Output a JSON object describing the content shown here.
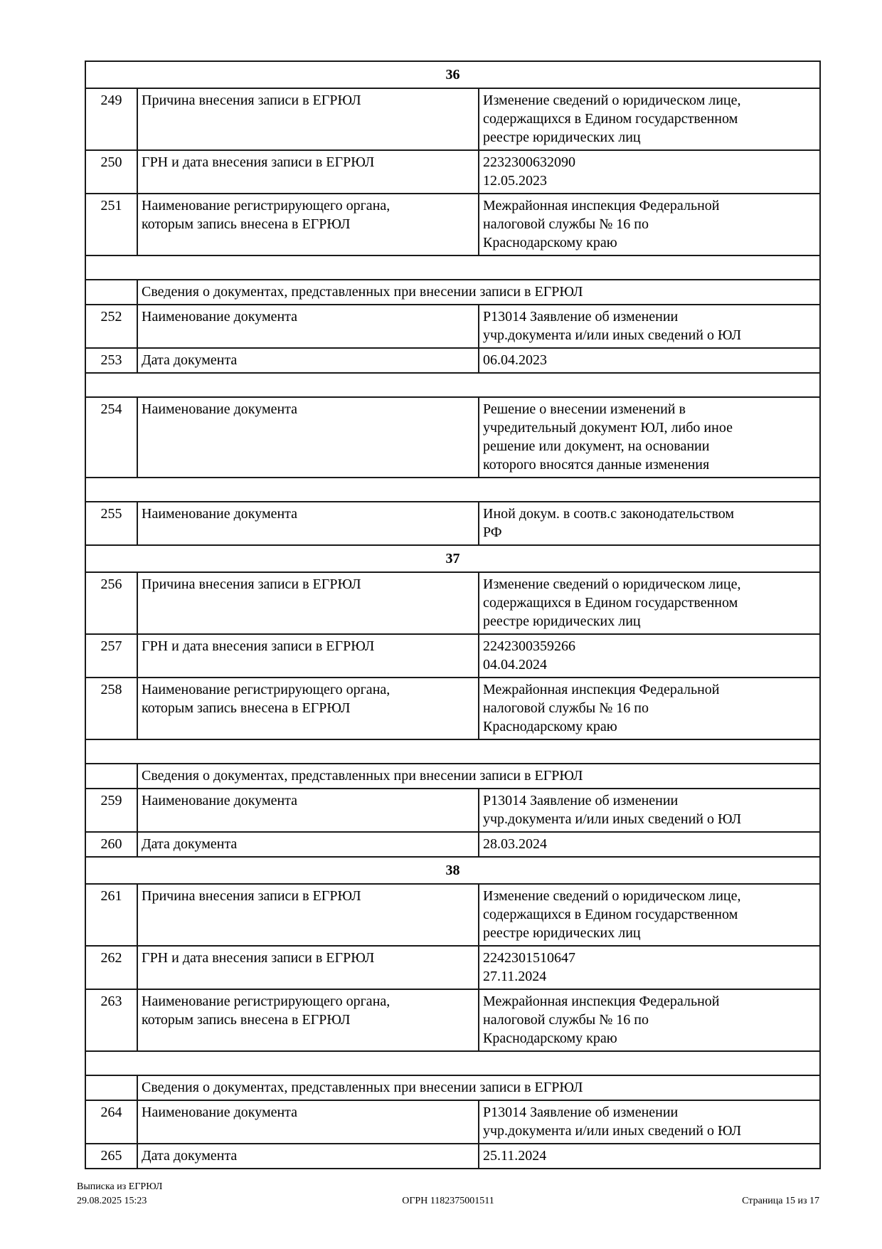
{
  "footer": {
    "title": "Выписка из ЕГРЮЛ",
    "datetime": "29.08.2025 15:23",
    "ogrn": "ОГРН 1182375001511",
    "page": "Страница 15 из 17"
  },
  "table": {
    "rows": [
      {
        "type": "section",
        "num": "36"
      },
      {
        "type": "data",
        "no": "249",
        "label": "Причина внесения записи в ЕГРЮЛ",
        "value": "Изменение сведений о юридическом лице,\nсодержащихся в Едином государственном\nреестре юридических лиц"
      },
      {
        "type": "data",
        "no": "250",
        "label": "ГРН и дата внесения записи в ЕГРЮЛ",
        "value": "2232300632090\n12.05.2023"
      },
      {
        "type": "data",
        "no": "251",
        "label": "Наименование регистрирующего органа,\nкоторым запись внесена в ЕГРЮЛ",
        "value": "Межрайонная инспекция Федеральной\nналоговой службы № 16 по\nКраснодарскому краю"
      },
      {
        "type": "spacer"
      },
      {
        "type": "docs_header",
        "text": "Сведения о документах, представленных при внесении записи в ЕГРЮЛ"
      },
      {
        "type": "data",
        "no": "252",
        "label": "Наименование документа",
        "value": "Р13014 Заявление об изменении\nучр.документа и/или иных сведений о ЮЛ"
      },
      {
        "type": "data",
        "no": "253",
        "label": "Дата документа",
        "value": "06.04.2023"
      },
      {
        "type": "spacer"
      },
      {
        "type": "data",
        "no": "254",
        "label": "Наименование документа",
        "value": "Решение о внесении изменений в\nучредительный документ ЮЛ, либо иное\nрешение или документ, на основании\nкоторого вносятся данные изменения"
      },
      {
        "type": "spacer"
      },
      {
        "type": "data",
        "no": "255",
        "label": "Наименование документа",
        "value": "Иной докум. в соотв.с законодательством\nРФ"
      },
      {
        "type": "section",
        "num": "37"
      },
      {
        "type": "data",
        "no": "256",
        "label": "Причина внесения записи в ЕГРЮЛ",
        "value": "Изменение сведений о юридическом лице,\nсодержащихся в Едином государственном\nреестре юридических лиц"
      },
      {
        "type": "data",
        "no": "257",
        "label": "ГРН и дата внесения записи в ЕГРЮЛ",
        "value": "2242300359266\n04.04.2024"
      },
      {
        "type": "data",
        "no": "258",
        "label": "Наименование регистрирующего органа,\nкоторым запись внесена в ЕГРЮЛ",
        "value": "Межрайонная инспекция Федеральной\nналоговой службы № 16 по\nКраснодарскому краю"
      },
      {
        "type": "spacer"
      },
      {
        "type": "docs_header",
        "text": "Сведения о документах, представленных при внесении записи в ЕГРЮЛ"
      },
      {
        "type": "data",
        "no": "259",
        "label": "Наименование документа",
        "value": "Р13014 Заявление об изменении\nучр.документа и/или иных сведений о ЮЛ"
      },
      {
        "type": "data",
        "no": "260",
        "label": "Дата документа",
        "value": "28.03.2024"
      },
      {
        "type": "section",
        "num": "38"
      },
      {
        "type": "data",
        "no": "261",
        "label": "Причина внесения записи в ЕГРЮЛ",
        "value": "Изменение сведений о юридическом лице,\nсодержащихся в Едином государственном\nреестре юридических лиц"
      },
      {
        "type": "data",
        "no": "262",
        "label": "ГРН и дата внесения записи в ЕГРЮЛ",
        "value": "2242301510647\n27.11.2024"
      },
      {
        "type": "data",
        "no": "263",
        "label": "Наименование регистрирующего органа,\nкоторым запись внесена в ЕГРЮЛ",
        "value": "Межрайонная инспекция Федеральной\nналоговой службы № 16 по\nКраснодарскому краю"
      },
      {
        "type": "spacer"
      },
      {
        "type": "docs_header",
        "text": "Сведения о документах, представленных при внесении записи в ЕГРЮЛ"
      },
      {
        "type": "data",
        "no": "264",
        "label": "Наименование документа",
        "value": "Р13014 Заявление об изменении\nучр.документа и/или иных сведений о ЮЛ"
      },
      {
        "type": "data",
        "no": "265",
        "label": "Дата документа",
        "value": "25.11.2024"
      }
    ]
  }
}
